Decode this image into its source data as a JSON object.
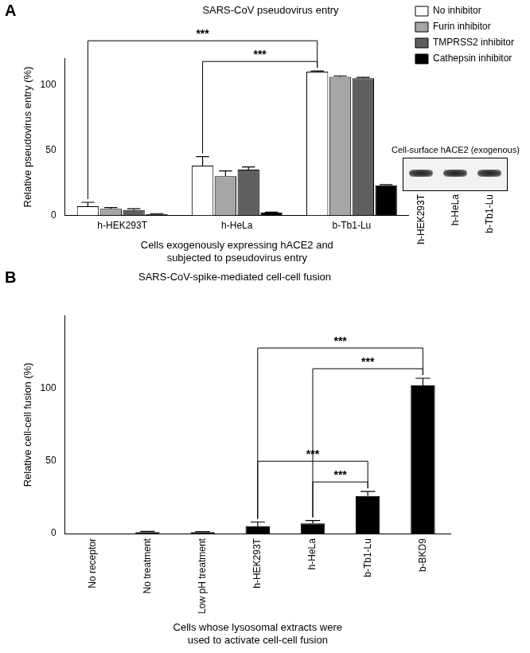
{
  "chart_data": [
    {
      "panel": "A",
      "type": "bar",
      "title": "SARS-CoV pseudovirus entry",
      "y_label": "Relative pseudovirus entry (%)",
      "x_label": [
        "Cells exogenously expressing hACE2 and",
        "subjected to pseudovirus entry"
      ],
      "categories": [
        "h-HEK293T",
        "h-HeLa",
        "b-Tb1-Lu"
      ],
      "series": [
        {
          "name": "No inhibitor",
          "color": "#ffffff",
          "values": [
            7,
            38,
            110
          ],
          "errors": [
            3,
            7,
            0.5
          ]
        },
        {
          "name": "Furin inhibitor",
          "color": "#a6a6a6",
          "values": [
            5,
            30,
            106
          ],
          "errors": [
            1,
            4,
            0.8
          ]
        },
        {
          "name": "TMPRSS2 inhibitor",
          "color": "#5f5f5f",
          "values": [
            4,
            35,
            105
          ],
          "errors": [
            1,
            2,
            0.6
          ]
        },
        {
          "name": "Cathepsin inhibitor",
          "color": "#000000",
          "values": [
            1,
            2,
            23
          ],
          "errors": [
            0.3,
            0.5,
            0.5
          ]
        }
      ],
      "ylim": [
        0,
        120
      ],
      "yticks": [
        0,
        50,
        100
      ],
      "grid": false,
      "legend": "top right",
      "annotations": [
        {
          "from": "h-HeLa",
          "to": "b-Tb1-Lu",
          "label": "***"
        },
        {
          "from": "h-HEK293T",
          "to": "b-Tb1-Lu",
          "label": "***"
        }
      ],
      "inset": {
        "title": "Cell-surface hACE2 (exogenous)",
        "lanes": [
          "h-HEK293T",
          "h-HeLa",
          "b-Tb1-Lu"
        ]
      }
    },
    {
      "panel": "B",
      "type": "bar",
      "title": "SARS-CoV-spike-mediated cell-cell fusion",
      "y_label": "Relative cell-cell fusion (%)",
      "x_label": [
        "Cells whose lysosomal extracts were",
        "used to activate cell-cell fusion"
      ],
      "categories": [
        "No receptor",
        "No treatment",
        "Low pH treatment",
        "h-HEK293T",
        "h-HeLa",
        "b-Tb1-Lu",
        "b-BKD9"
      ],
      "values": [
        0,
        1,
        1,
        5,
        7,
        26,
        102
      ],
      "errors": [
        0,
        0.5,
        0.3,
        3,
        2,
        3,
        5
      ],
      "color": "#000000",
      "ylim": [
        0,
        150
      ],
      "yticks": [
        0,
        50,
        100
      ],
      "grid": false,
      "annotations": [
        {
          "from": "h-HeLa",
          "to": "b-Tb1-Lu",
          "label": "***"
        },
        {
          "from": "h-HEK293T",
          "to": "b-Tb1-Lu",
          "label": "***"
        },
        {
          "from": "h-HeLa",
          "to": "b-BKD9",
          "label": "***"
        },
        {
          "from": "h-HEK293T",
          "to": "b-BKD9",
          "label": "***"
        }
      ]
    }
  ]
}
